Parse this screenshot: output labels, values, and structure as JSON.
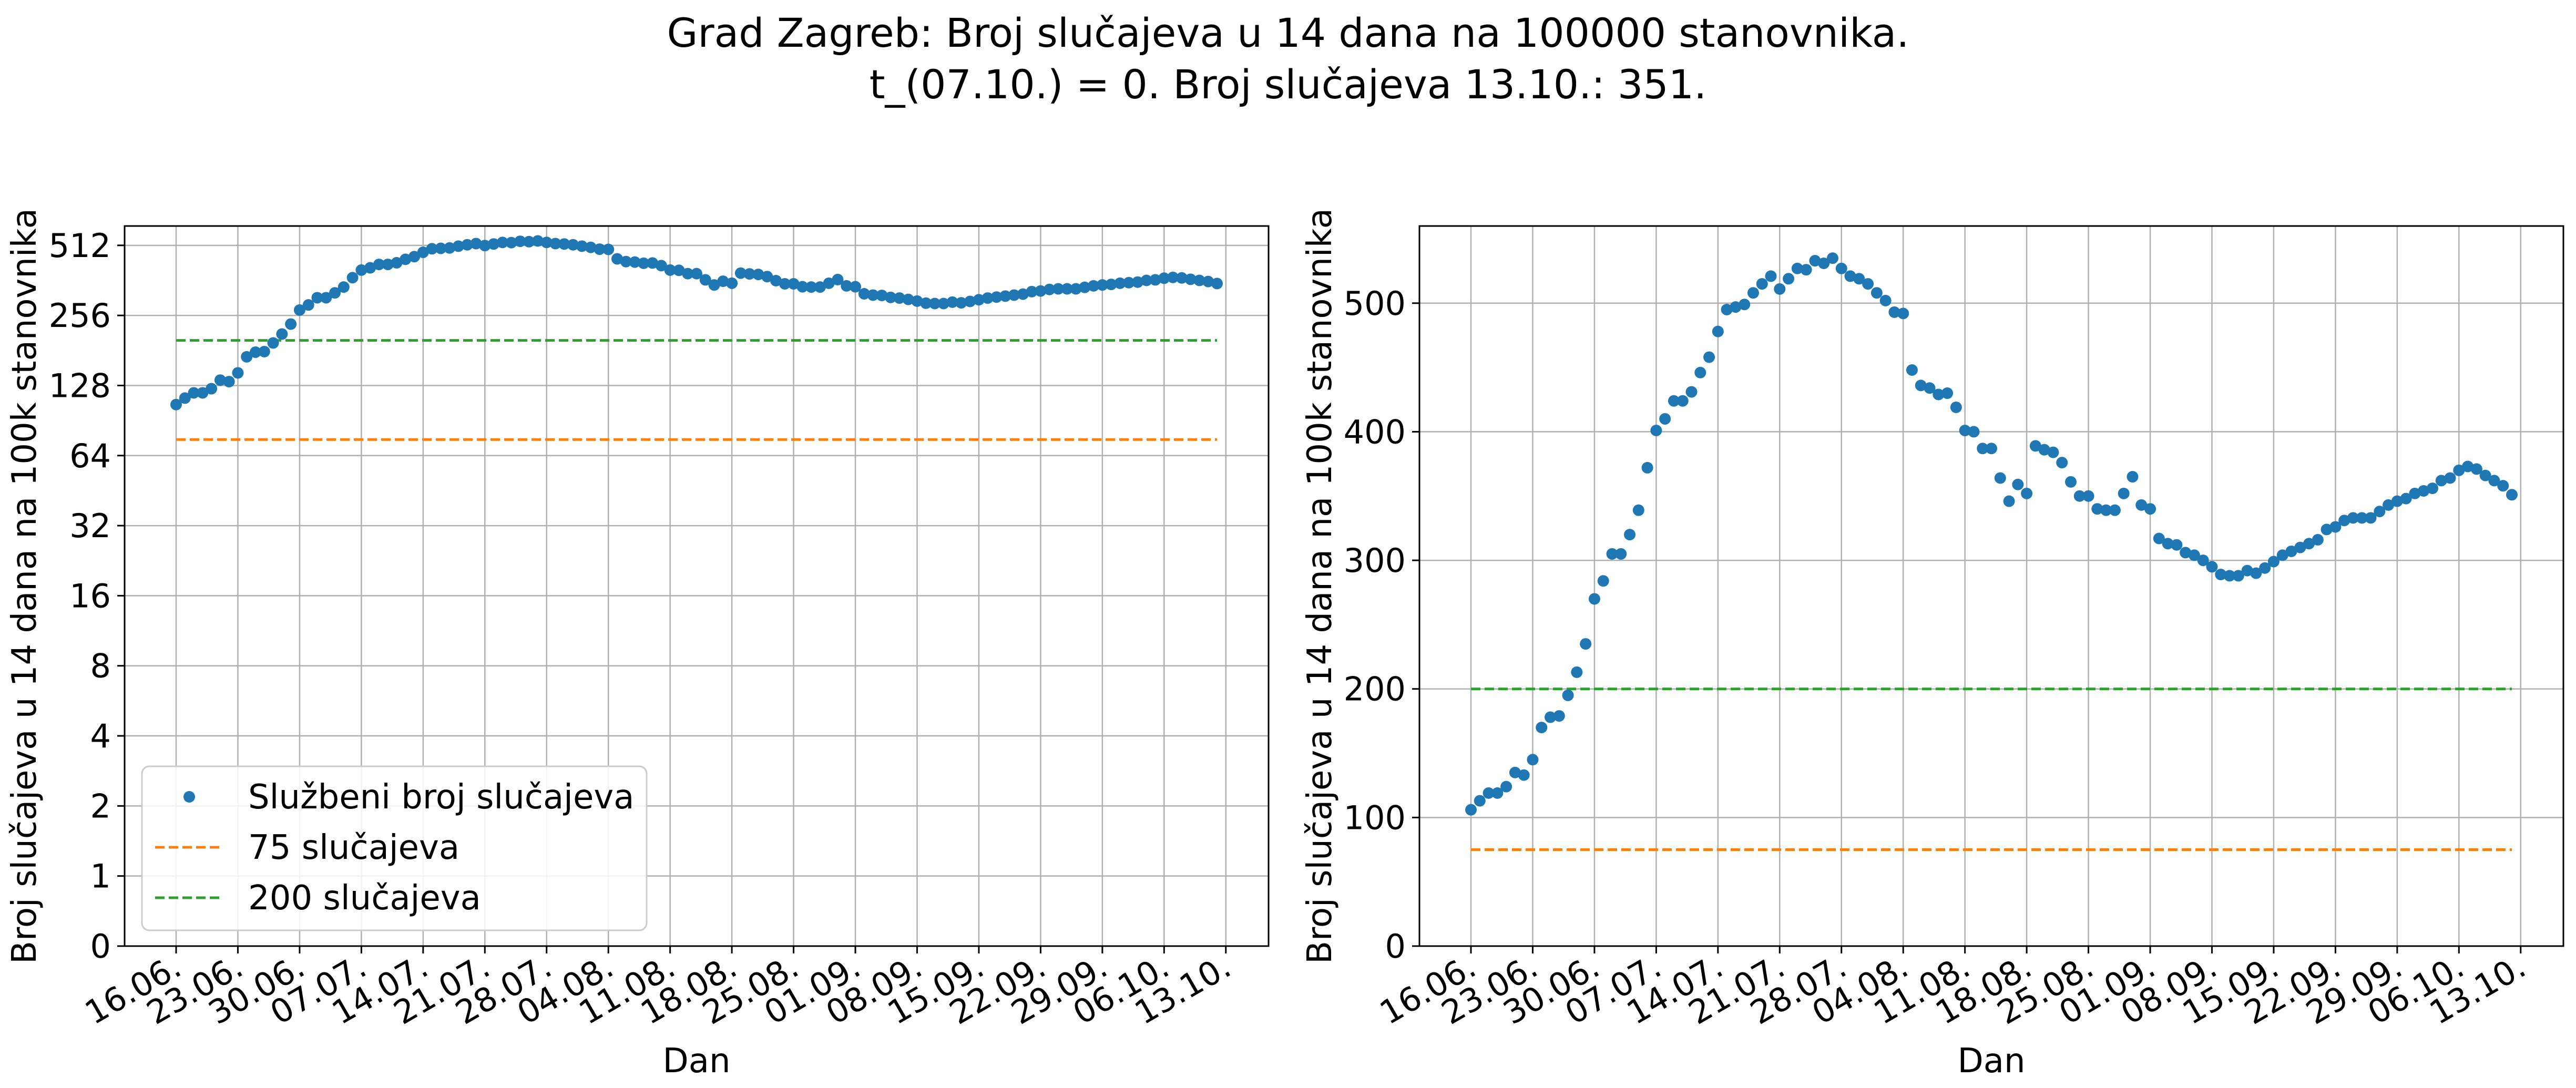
{
  "title": {
    "line1": "Grad Zagreb: Broj slučajeva u 14 dana na 100000 stanovnika.",
    "line2": "t_(07.10.) = 0. Broj slučajeva 13.10.: 351."
  },
  "chart_data": [
    {
      "type": "scatter",
      "panel": "left",
      "yscale": "symlog-base2",
      "xlabel": "Dan",
      "ylabel": "Broj slučajeva u 14 dana na 100k stanovnika",
      "ytick_labels": [
        "0",
        "1",
        "2",
        "4",
        "8",
        "16",
        "32",
        "64",
        "128",
        "256",
        "512"
      ],
      "ylim": [
        0,
        620
      ],
      "legend": {
        "position": "lower-left",
        "entries": [
          "Službeni broj slučajeva",
          "75 slučajeva",
          "200 slučajeva"
        ]
      },
      "grid": true
    },
    {
      "type": "scatter",
      "panel": "right",
      "yscale": "linear",
      "xlabel": "Dan",
      "ylabel": "Broj slučajeva u 14 dana na 100k stanovnika",
      "ytick_labels": [
        "0",
        "100",
        "200",
        "300",
        "400",
        "500"
      ],
      "ylim": [
        0,
        560
      ],
      "grid": true
    }
  ],
  "shared": {
    "x_tick_labels": [
      "16.06.",
      "23.06.",
      "30.06.",
      "07.07.",
      "14.07.",
      "21.07.",
      "28.07.",
      "04.08.",
      "11.08.",
      "18.08.",
      "25.08.",
      "01.09.",
      "08.09.",
      "15.09.",
      "22.09.",
      "29.09.",
      "06.10.",
      "13.10."
    ],
    "x_start_date": "16.06.",
    "x_end_date": "13.10.",
    "series": [
      {
        "name": "Službeni broj slučajeva",
        "color": "#1f77b4",
        "marker": "dot",
        "values": [
          106,
          113,
          119,
          119,
          124,
          135,
          133,
          145,
          170,
          178,
          179,
          195,
          213,
          235,
          270,
          284,
          305,
          305,
          320,
          339,
          372,
          401,
          410,
          424,
          424,
          431,
          446,
          458,
          478,
          495,
          497,
          499,
          508,
          515,
          521,
          511,
          519,
          527,
          526,
          533,
          531,
          535,
          527,
          521,
          519,
          515,
          508,
          502,
          493,
          492,
          448,
          436,
          434,
          429,
          430,
          419,
          401,
          400,
          387,
          387,
          364,
          346,
          359,
          352,
          389,
          386,
          384,
          376,
          361,
          350,
          350,
          340,
          339,
          339,
          352,
          365,
          343,
          340,
          317,
          313,
          312,
          306,
          304,
          300,
          295,
          289,
          288,
          288,
          292,
          290,
          294,
          299,
          304,
          307,
          310,
          313,
          316,
          324,
          326,
          331,
          333,
          333,
          333,
          338,
          343,
          346,
          348,
          352,
          354,
          356,
          362,
          364,
          370,
          373,
          371,
          366,
          362,
          358,
          351
        ]
      },
      {
        "name": "75 slučajeva",
        "color": "#ff7f0e",
        "style": "dashed",
        "value": 75
      },
      {
        "name": "200 slučajeva",
        "color": "#2ca02c",
        "style": "dashed",
        "value": 200
      }
    ]
  }
}
